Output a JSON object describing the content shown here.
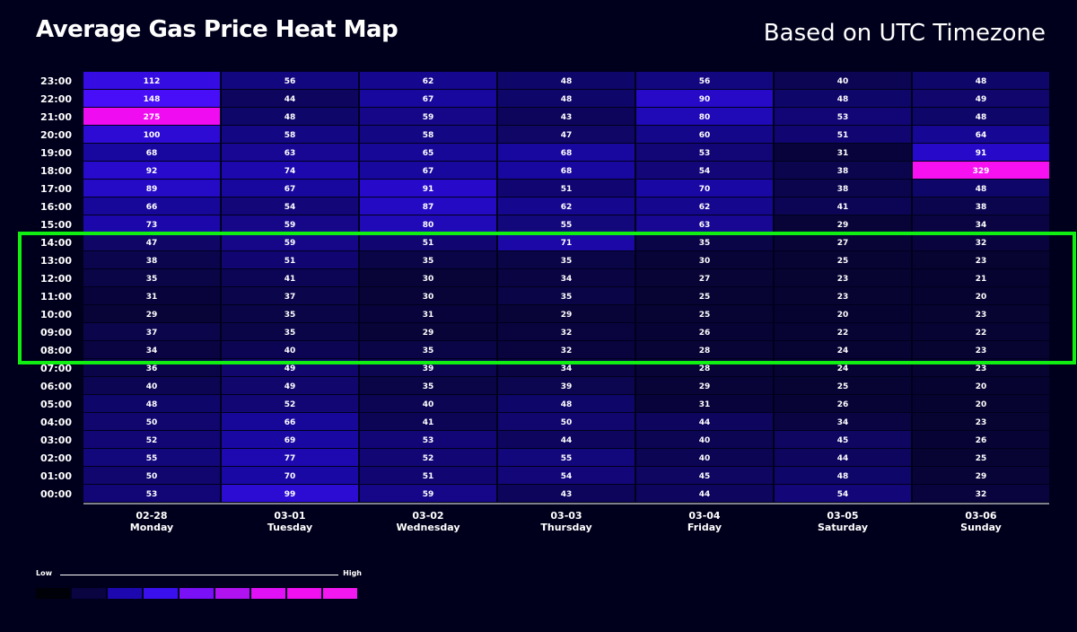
{
  "header": {
    "title": "Average Gas Price Heat Map",
    "subtitle": "Based on UTC Timezone"
  },
  "legend": {
    "low_label": "Low",
    "high_label": "High",
    "colors": [
      "#000008",
      "#0a0440",
      "#1d08b0",
      "#3b10ee",
      "#7a10f5",
      "#b012f0",
      "#e012f5",
      "#f010f0",
      "#f318f0"
    ]
  },
  "highlight": {
    "color": "#11ee11",
    "hours": [
      "08:00",
      "14:00"
    ]
  },
  "chart_data": {
    "type": "heatmap",
    "title": "Average Gas Price Heat Map",
    "x_dates": [
      "02-28",
      "03-01",
      "03-02",
      "03-03",
      "03-04",
      "03-05",
      "03-06"
    ],
    "x_days": [
      "Monday",
      "Tuesday",
      "Wednesday",
      "Thursday",
      "Friday",
      "Saturday",
      "Sunday"
    ],
    "y_hours": [
      "23:00",
      "22:00",
      "21:00",
      "20:00",
      "19:00",
      "18:00",
      "17:00",
      "16:00",
      "15:00",
      "14:00",
      "13:00",
      "12:00",
      "11:00",
      "10:00",
      "09:00",
      "08:00",
      "07:00",
      "06:00",
      "05:00",
      "04:00",
      "03:00",
      "02:00",
      "01:00",
      "00:00"
    ],
    "values": [
      [
        112,
        56,
        62,
        48,
        56,
        40,
        48
      ],
      [
        148,
        44,
        67,
        48,
        90,
        48,
        49
      ],
      [
        275,
        48,
        59,
        43,
        80,
        53,
        48
      ],
      [
        100,
        58,
        58,
        47,
        60,
        51,
        64
      ],
      [
        68,
        63,
        65,
        68,
        53,
        31,
        91
      ],
      [
        92,
        74,
        67,
        68,
        54,
        38,
        329
      ],
      [
        89,
        67,
        91,
        51,
        70,
        38,
        48
      ],
      [
        66,
        54,
        87,
        62,
        62,
        41,
        38
      ],
      [
        73,
        59,
        80,
        55,
        63,
        29,
        34
      ],
      [
        47,
        59,
        51,
        71,
        35,
        27,
        32
      ],
      [
        38,
        51,
        35,
        35,
        30,
        25,
        23
      ],
      [
        35,
        41,
        30,
        34,
        27,
        23,
        21
      ],
      [
        31,
        37,
        30,
        35,
        25,
        23,
        20
      ],
      [
        29,
        35,
        31,
        29,
        25,
        20,
        23
      ],
      [
        37,
        35,
        29,
        32,
        26,
        22,
        22
      ],
      [
        34,
        40,
        35,
        32,
        28,
        24,
        23
      ],
      [
        36,
        49,
        39,
        34,
        28,
        24,
        23
      ],
      [
        40,
        49,
        35,
        39,
        29,
        25,
        20
      ],
      [
        48,
        52,
        40,
        48,
        31,
        26,
        20
      ],
      [
        50,
        66,
        41,
        50,
        44,
        34,
        23
      ],
      [
        52,
        69,
        53,
        44,
        40,
        45,
        26
      ],
      [
        55,
        77,
        52,
        55,
        40,
        44,
        25
      ],
      [
        50,
        70,
        51,
        54,
        45,
        48,
        29
      ],
      [
        53,
        99,
        59,
        43,
        44,
        54,
        32
      ]
    ]
  }
}
